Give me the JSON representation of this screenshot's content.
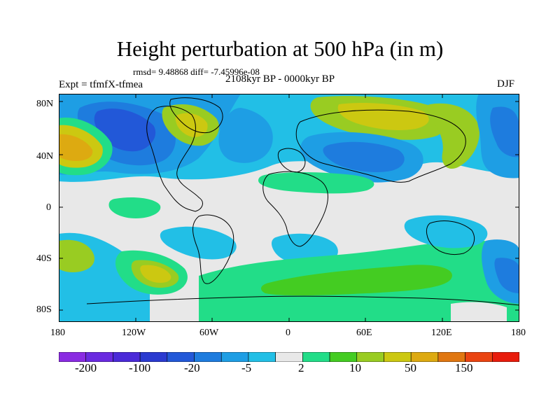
{
  "title": "Height perturbation at 500 hPa (in m)",
  "stats_line": "rmsd= 9.48868 diff= -7.45996e-08",
  "period_line": "2108kyr BP - 0000kyr BP",
  "experiment": "Expt = tfmfX-tfmea",
  "season": "DJF",
  "y_ticks": [
    "80N",
    "40N",
    "0",
    "40S",
    "80S"
  ],
  "x_ticks": [
    "180",
    "120W",
    "60W",
    "0",
    "60E",
    "120E",
    "180"
  ],
  "colorbar": {
    "colors": [
      "#8a2be2",
      "#6a2ae0",
      "#4b2ad8",
      "#2a3ad0",
      "#2258d8",
      "#1e7cde",
      "#1e9ee4",
      "#22bfe6",
      "#e8e8e8",
      "#22dd88",
      "#44cc22",
      "#99cc22",
      "#ccc811",
      "#ddaa11",
      "#e07711",
      "#ea4411",
      "#e81c0c"
    ],
    "labels": [
      "-200",
      "-100",
      "-20",
      "-5",
      "2",
      "10",
      "50",
      "150"
    ]
  }
}
